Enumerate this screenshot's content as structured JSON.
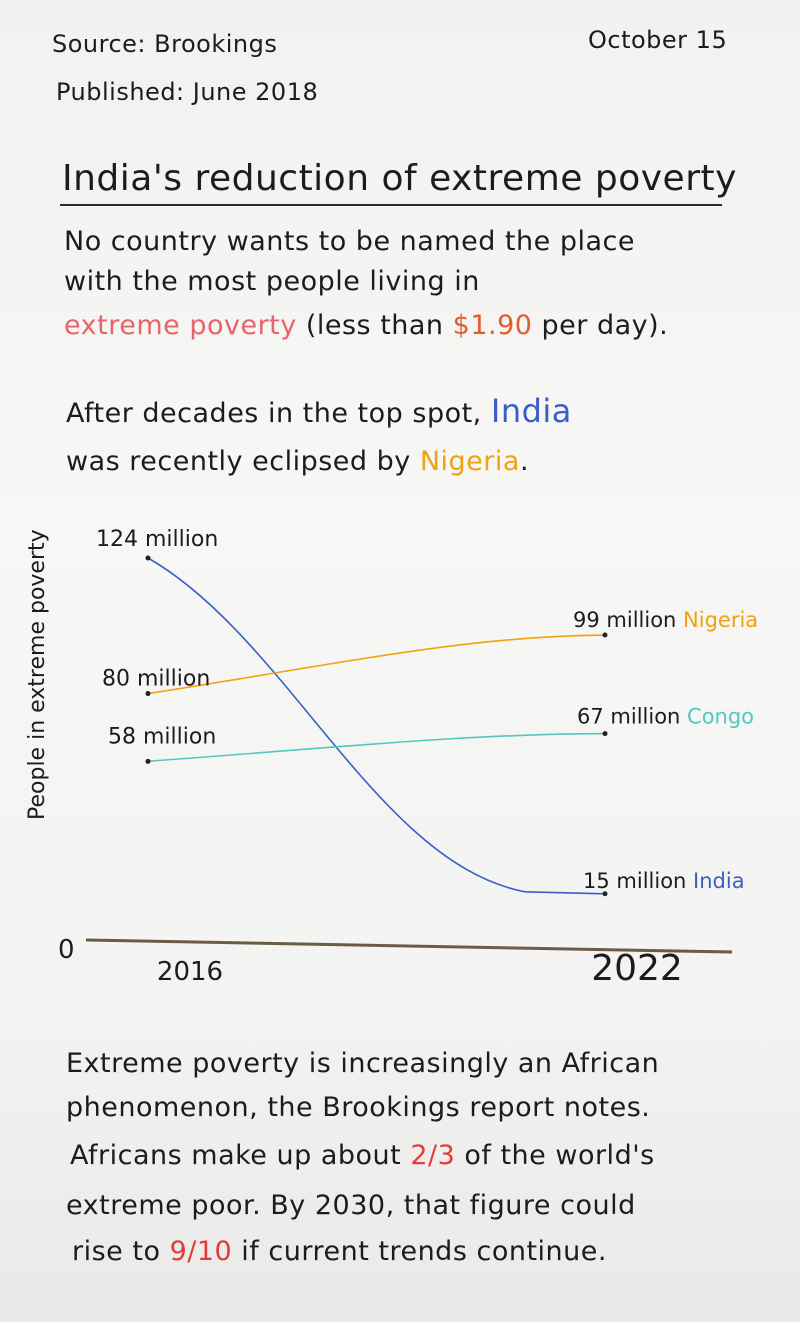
{
  "header": {
    "source": "Source: Brookings",
    "published": "Published: June 2018",
    "date": "October 15"
  },
  "title": "India's reduction of extreme poverty",
  "intro": {
    "line1": "No country wants to be named the place",
    "line2": "with the most people living in",
    "line3_highlight": "extreme poverty",
    "line3_a": "(less than",
    "line3_money": "$1.90",
    "line3_b": "per day)."
  },
  "lead": {
    "line1": "After decades in the top spot,",
    "line1_country": "India",
    "line2": "was recently eclipsed by",
    "line2_country": "Nigeria",
    "line2_end": "."
  },
  "colors": {
    "india": "#3a5fc8",
    "nigeria": "#f2a20e",
    "congo": "#54c7c2",
    "axis": "#6b5a45",
    "red": "#e8636a",
    "crimson": "#e23b3b"
  },
  "chart_data": {
    "type": "line",
    "x": [
      2016,
      2022
    ],
    "xlabel": "",
    "ylabel": "People in extreme poverty",
    "y_zero_label": "0",
    "ylim": [
      0,
      130
    ],
    "series": [
      {
        "name": "India",
        "values": [
          124,
          15
        ],
        "start_label": "124 million",
        "end_value_label": "15 million",
        "color": "#3a5fc8"
      },
      {
        "name": "Nigeria",
        "values": [
          80,
          99
        ],
        "start_label": "80 million",
        "end_value_label": "99 million",
        "color": "#f2a20e"
      },
      {
        "name": "Congo",
        "values": [
          58,
          67
        ],
        "start_label": "58 million",
        "end_value_label": "67 million",
        "color": "#54c7c2"
      }
    ],
    "x_tick_labels": [
      "2016",
      "2022"
    ]
  },
  "outro": {
    "line1": "Extreme poverty is increasingly an African",
    "line2": "phenomenon, the Brookings report notes.",
    "line3_a": "Africans make up about",
    "line3_frac": "2/3",
    "line3_b": "of the world's",
    "line4": "extreme poor. By 2030, that figure could",
    "line5_a": "rise to",
    "line5_frac": "9/10",
    "line5_b": "if current trends continue."
  }
}
